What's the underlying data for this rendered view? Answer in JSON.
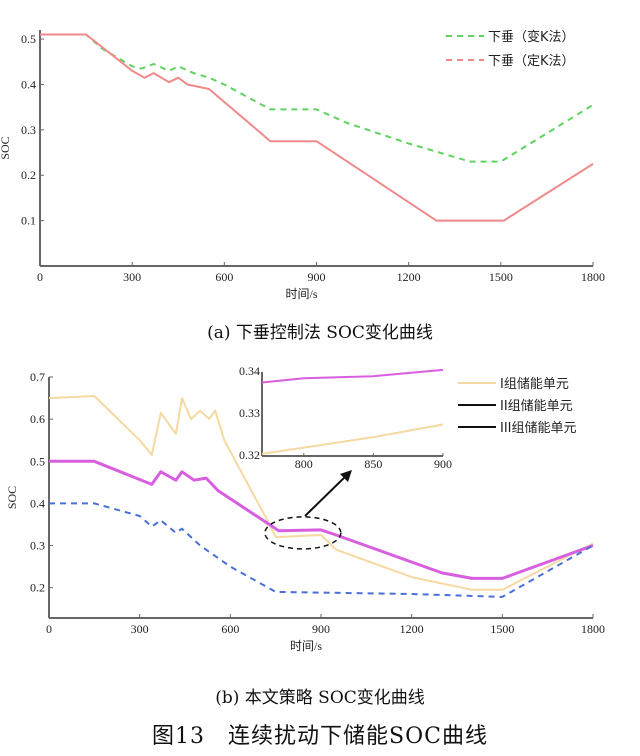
{
  "chart_data": [
    {
      "type": "line",
      "id": "a",
      "title": "(a) 下垂控制法 SOC变化曲线",
      "xlabel": "时间/s",
      "ylabel": "SOC",
      "xlim": [
        0,
        1800
      ],
      "ylim": [
        0,
        0.52
      ],
      "xticks": [
        "0",
        "300",
        "600",
        "900",
        "1200",
        "1500",
        "1800"
      ],
      "yticks": [
        "0.1",
        "0.2",
        "0.3",
        "0.4",
        "0.5"
      ],
      "grid": false,
      "legend_position": "top-right",
      "series": [
        {
          "name": "下垂（变K法）",
          "color": "#5fd35f",
          "dash": true,
          "x": [
            0,
            150,
            200,
            300,
            330,
            370,
            420,
            450,
            500,
            550,
            600,
            750,
            900,
            1000,
            1200,
            1400,
            1500,
            1800
          ],
          "y": [
            0.51,
            0.51,
            0.48,
            0.44,
            0.435,
            0.445,
            0.43,
            0.44,
            0.425,
            0.415,
            0.4,
            0.345,
            0.345,
            0.315,
            0.27,
            0.23,
            0.23,
            0.355
          ]
        },
        {
          "name": "下垂（定K法）",
          "color": "#f08a8a",
          "dash": false,
          "legend_dash": true,
          "x": [
            0,
            150,
            300,
            340,
            370,
            420,
            450,
            480,
            550,
            750,
            900,
            1290,
            1510,
            1800
          ],
          "y": [
            0.51,
            0.51,
            0.43,
            0.415,
            0.425,
            0.405,
            0.415,
            0.4,
            0.39,
            0.275,
            0.275,
            0.1,
            0.1,
            0.225
          ]
        }
      ]
    },
    {
      "type": "line",
      "id": "b",
      "title": "(b) 本文策略 SOC变化曲线",
      "xlabel": "时间/s",
      "ylabel": "SOC",
      "xlim": [
        0,
        1800
      ],
      "ylim": [
        0.128,
        0.7
      ],
      "xticks": [
        "0",
        "300",
        "600",
        "900",
        "1200",
        "1500",
        "1800"
      ],
      "yticks": [
        "0.2",
        "0.3",
        "0.4",
        "0.5",
        "0.6",
        "0.7"
      ],
      "grid": false,
      "legend_position": "top-right",
      "series": [
        {
          "name": "I组储能单元",
          "color": "#f5d9a0",
          "dash": false,
          "x": [
            0,
            150,
            300,
            340,
            370,
            420,
            440,
            470,
            500,
            530,
            550,
            580,
            730,
            750,
            900,
            950,
            1200,
            1400,
            1500,
            1800
          ],
          "y": [
            0.65,
            0.655,
            0.55,
            0.515,
            0.615,
            0.565,
            0.65,
            0.6,
            0.62,
            0.6,
            0.62,
            0.55,
            0.35,
            0.32,
            0.325,
            0.29,
            0.225,
            0.195,
            0.195,
            0.305
          ]
        },
        {
          "name": "II组储能单元",
          "color": "#d85ee0",
          "dash": false,
          "x": [
            0,
            150,
            340,
            370,
            420,
            440,
            480,
            520,
            560,
            740,
            760,
            900,
            950,
            1300,
            1400,
            1500,
            1800
          ],
          "y": [
            0.5,
            0.5,
            0.445,
            0.475,
            0.455,
            0.475,
            0.455,
            0.46,
            0.43,
            0.345,
            0.335,
            0.337,
            0.325,
            0.235,
            0.222,
            0.222,
            0.3
          ]
        },
        {
          "name": "III组储能单元",
          "color": "#4a6fd8",
          "dash": true,
          "x": [
            0,
            150,
            300,
            340,
            370,
            420,
            440,
            500,
            600,
            700,
            750,
            1200,
            1500,
            1800
          ],
          "y": [
            0.4,
            0.4,
            0.37,
            0.345,
            0.36,
            0.33,
            0.34,
            0.3,
            0.25,
            0.21,
            0.19,
            0.185,
            0.178,
            0.3
          ]
        }
      ],
      "inset": {
        "xlim": [
          770,
          900
        ],
        "ylim": [
          0.32,
          0.34
        ],
        "xticks": [
          "800",
          "850",
          "900"
        ],
        "yticks": [
          "0.32",
          "0.33",
          "0.34"
        ],
        "series": [
          {
            "name": "II组储能单元",
            "color": "#d85ee0",
            "x": [
              770,
              800,
              850,
              900
            ],
            "y": [
              0.3375,
              0.3385,
              0.339,
              0.3405
            ]
          },
          {
            "name": "I组储能单元",
            "color": "#f5d9a0",
            "x": [
              770,
              800,
              850,
              900
            ],
            "y": [
              0.3205,
              0.322,
              0.3245,
              0.3275
            ]
          }
        ]
      }
    }
  ],
  "captions": {
    "a": "(a) 下垂控制法 SOC变化曲线",
    "b": "(b) 本文策略 SOC变化曲线",
    "figure": "图13　连续扰动下储能SOC曲线"
  }
}
